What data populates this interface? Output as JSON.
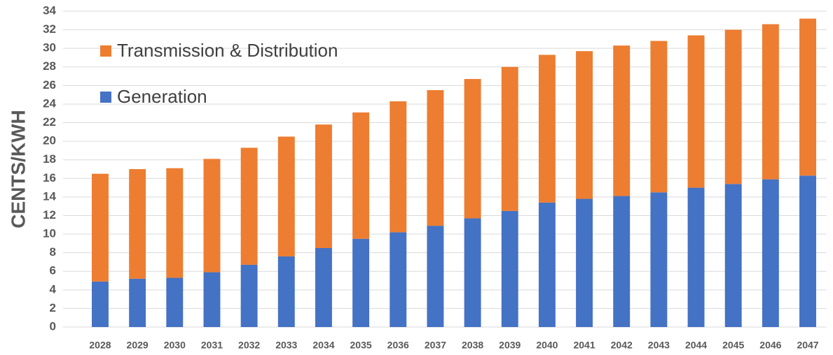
{
  "chart_data": {
    "type": "stacked_bar",
    "ylabel": "CENTS/KWH",
    "categories": [
      "2028",
      "2029",
      "2030",
      "2031",
      "2032",
      "2033",
      "2034",
      "2035",
      "2036",
      "2037",
      "2038",
      "2039",
      "2040",
      "2041",
      "2042",
      "2043",
      "2044",
      "2045",
      "2046",
      "2047"
    ],
    "series": [
      {
        "name": "Generation",
        "color": "#4472c4",
        "values": [
          4.9,
          5.2,
          5.3,
          5.9,
          6.7,
          7.6,
          8.5,
          9.5,
          10.2,
          10.9,
          11.7,
          12.5,
          13.4,
          13.8,
          14.1,
          14.5,
          15.0,
          15.4,
          15.9,
          16.3
        ]
      },
      {
        "name": "Transmission & Distribution",
        "color": "#ed7d31",
        "values": [
          11.6,
          11.8,
          11.8,
          12.2,
          12.6,
          12.9,
          13.3,
          13.6,
          14.1,
          14.6,
          15.0,
          15.5,
          15.9,
          15.9,
          16.2,
          16.3,
          16.4,
          16.6,
          16.7,
          16.9
        ]
      }
    ],
    "ylim": [
      0,
      34
    ],
    "yticks": [
      0,
      2,
      4,
      6,
      8,
      10,
      12,
      14,
      16,
      18,
      20,
      22,
      24,
      26,
      28,
      30,
      32,
      34
    ],
    "grid": true,
    "legend": "top-left"
  }
}
